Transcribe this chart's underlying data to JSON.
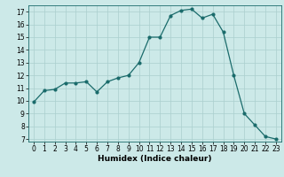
{
  "x": [
    0,
    1,
    2,
    3,
    4,
    5,
    6,
    7,
    8,
    9,
    10,
    11,
    12,
    13,
    14,
    15,
    16,
    17,
    18,
    19,
    20,
    21,
    22,
    23
  ],
  "y": [
    9.9,
    10.8,
    10.9,
    11.4,
    11.4,
    11.5,
    10.7,
    11.5,
    11.8,
    12.0,
    13.0,
    15.0,
    15.0,
    16.7,
    17.1,
    17.2,
    16.5,
    16.8,
    15.4,
    12.0,
    9.0,
    8.1,
    7.2,
    7.0
  ],
  "line_color": "#1a6b6b",
  "marker": "o",
  "marker_size": 2.0,
  "linewidth": 0.9,
  "xlabel": "Humidex (Indice chaleur)",
  "ylabel": "",
  "xlim": [
    -0.5,
    23.5
  ],
  "ylim": [
    6.8,
    17.5
  ],
  "yticks": [
    7,
    8,
    9,
    10,
    11,
    12,
    13,
    14,
    15,
    16,
    17
  ],
  "xticks": [
    0,
    1,
    2,
    3,
    4,
    5,
    6,
    7,
    8,
    9,
    10,
    11,
    12,
    13,
    14,
    15,
    16,
    17,
    18,
    19,
    20,
    21,
    22,
    23
  ],
  "background_color": "#cce9e8",
  "grid_color": "#aacfce",
  "label_fontsize": 6.5,
  "tick_fontsize": 5.5
}
